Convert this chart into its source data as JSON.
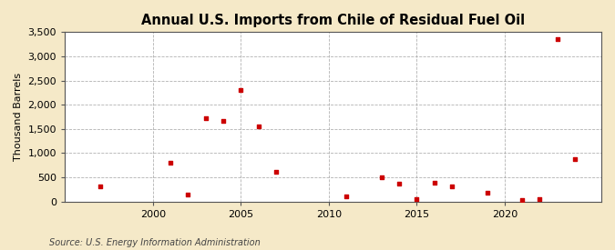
{
  "title": "Annual U.S. Imports from Chile of Residual Fuel Oil",
  "ylabel": "Thousand Barrels",
  "source": "Source: U.S. Energy Information Administration",
  "fig_background_color": "#f5e9c8",
  "plot_background_color": "#ffffff",
  "marker_color": "#cc0000",
  "data": [
    [
      1997,
      320
    ],
    [
      2001,
      800
    ],
    [
      2002,
      150
    ],
    [
      2003,
      1720
    ],
    [
      2004,
      1670
    ],
    [
      2005,
      2300
    ],
    [
      2006,
      1560
    ],
    [
      2007,
      620
    ],
    [
      2011,
      110
    ],
    [
      2013,
      500
    ],
    [
      2014,
      370
    ],
    [
      2015,
      50
    ],
    [
      2016,
      380
    ],
    [
      2017,
      310
    ],
    [
      2019,
      185
    ],
    [
      2021,
      40
    ],
    [
      2022,
      50
    ],
    [
      2023,
      3360
    ],
    [
      2024,
      870
    ]
  ],
  "xlim": [
    1995,
    2025.5
  ],
  "ylim": [
    0,
    3500
  ],
  "yticks": [
    0,
    500,
    1000,
    1500,
    2000,
    2500,
    3000,
    3500
  ],
  "xticks": [
    2000,
    2005,
    2010,
    2015,
    2020
  ],
  "grid_color": "#aaaaaa",
  "title_fontsize": 10.5,
  "label_fontsize": 8,
  "tick_fontsize": 8,
  "source_fontsize": 7
}
